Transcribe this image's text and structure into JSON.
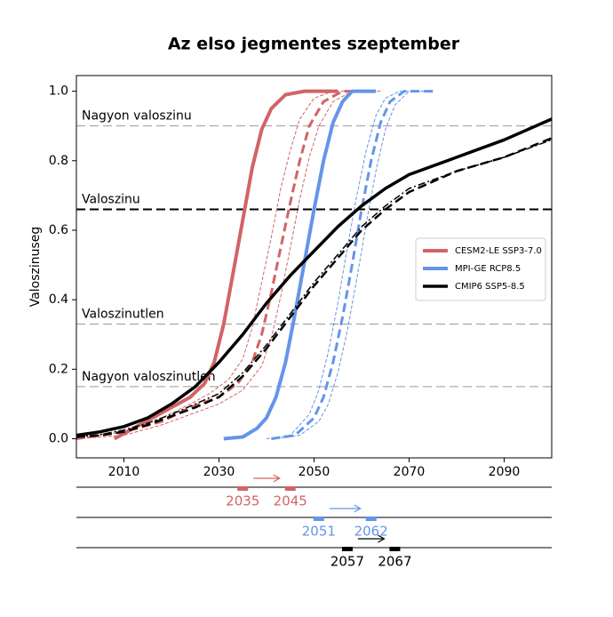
{
  "chart_data": {
    "type": "line",
    "title": "Az elso jegmentes szeptember",
    "y_label": "Valoszinuseg",
    "xlim": [
      2000,
      2100
    ],
    "ylim": [
      -0.055,
      1.045
    ],
    "xticks": [
      2010,
      2030,
      2050,
      2070,
      2090
    ],
    "yticks": [
      {
        "value": 0,
        "label": "0.0"
      },
      0.2,
      0.4,
      0.6,
      0.8,
      {
        "value": 1,
        "label": "1.0"
      }
    ],
    "legend": "center right",
    "reference_lines": [
      {
        "value": 0.9,
        "label": "Nagyon valoszinu",
        "color": "#999999",
        "width": 1,
        "dash": "dashed"
      },
      {
        "value": 0.66,
        "label": "Valoszinu",
        "color": "#000000",
        "width": 2,
        "dash": "dashed"
      },
      {
        "value": 0.33,
        "label": "Valoszinutlen",
        "color": "#999999",
        "width": 1,
        "dash": "dashed"
      },
      {
        "value": 0.15,
        "label": "Nagyon valoszinutlen",
        "color": "#999999",
        "width": 1,
        "dash": "dashed"
      }
    ],
    "series": [
      {
        "name": "CESM2-LE SSP3-7.0",
        "color": "#d26466",
        "width": 4,
        "dash": "solid",
        "x": [
          2008,
          2012,
          2016,
          2020,
          2024,
          2027,
          2029,
          2031,
          2033,
          2035,
          2037,
          2039,
          2041,
          2044,
          2048,
          2055
        ],
        "values": [
          0,
          0.03,
          0.06,
          0.09,
          0.12,
          0.16,
          0.22,
          0.33,
          0.48,
          0.63,
          0.78,
          0.89,
          0.95,
          0.99,
          1.0,
          1.0
        ]
      },
      {
        "color": "#d26466",
        "width": 3,
        "dash": "dashed",
        "x": [
          2000,
          2010,
          2018,
          2024,
          2030,
          2034,
          2037,
          2039,
          2041,
          2043,
          2045,
          2047,
          2049,
          2052,
          2056,
          2063
        ],
        "values": [
          0,
          0.02,
          0.05,
          0.09,
          0.12,
          0.16,
          0.22,
          0.3,
          0.42,
          0.55,
          0.68,
          0.8,
          0.9,
          0.97,
          1.0,
          1.0
        ]
      },
      {
        "color": "#d26466",
        "width": 1,
        "dash": "thin",
        "x": [
          2000,
          2010,
          2018,
          2024,
          2028,
          2032,
          2035,
          2037,
          2039,
          2041,
          2043,
          2045,
          2047,
          2050,
          2054,
          2060
        ],
        "values": [
          0,
          0.02,
          0.06,
          0.1,
          0.13,
          0.17,
          0.23,
          0.32,
          0.45,
          0.58,
          0.72,
          0.83,
          0.92,
          0.98,
          1.0,
          1.0
        ]
      },
      {
        "color": "#d26466",
        "width": 1,
        "dash": "thin",
        "x": [
          2000,
          2010,
          2018,
          2024,
          2030,
          2035,
          2039,
          2041,
          2043,
          2045,
          2047,
          2049,
          2051,
          2054,
          2058,
          2064
        ],
        "values": [
          0,
          0.01,
          0.04,
          0.07,
          0.1,
          0.14,
          0.21,
          0.29,
          0.41,
          0.55,
          0.69,
          0.81,
          0.9,
          0.97,
          1.0,
          1.0
        ]
      },
      {
        "name": "MPI-GE RCP8.5",
        "color": "#6495e8",
        "width": 4,
        "dash": "solid",
        "x": [
          2031,
          2035,
          2038,
          2040,
          2042,
          2044,
          2046,
          2048,
          2050,
          2052,
          2054,
          2056,
          2058,
          2063
        ],
        "values": [
          0,
          0.005,
          0.03,
          0.06,
          0.12,
          0.22,
          0.36,
          0.51,
          0.66,
          0.8,
          0.91,
          0.97,
          1.0,
          1.0
        ]
      },
      {
        "color": "#6495e8",
        "width": 3,
        "dash": "dashed",
        "x": [
          2041,
          2046,
          2050,
          2052,
          2054,
          2056,
          2058,
          2060,
          2062,
          2064,
          2066,
          2069,
          2075
        ],
        "values": [
          0,
          0.01,
          0.06,
          0.12,
          0.22,
          0.35,
          0.5,
          0.66,
          0.8,
          0.91,
          0.97,
          1.0,
          1.0
        ]
      },
      {
        "color": "#6495e8",
        "width": 1,
        "dash": "thin",
        "x": [
          2040,
          2045,
          2049,
          2051,
          2053,
          2055,
          2057,
          2059,
          2061,
          2063,
          2065,
          2068,
          2073
        ],
        "values": [
          0,
          0.01,
          0.07,
          0.14,
          0.25,
          0.39,
          0.55,
          0.7,
          0.83,
          0.93,
          0.98,
          1.0,
          1.0
        ]
      },
      {
        "color": "#6495e8",
        "width": 1,
        "dash": "thin",
        "x": [
          2042,
          2047,
          2051,
          2053,
          2055,
          2057,
          2059,
          2061,
          2063,
          2065,
          2067,
          2070,
          2075
        ],
        "values": [
          0,
          0.01,
          0.05,
          0.1,
          0.19,
          0.31,
          0.46,
          0.62,
          0.77,
          0.89,
          0.96,
          1.0,
          1.0
        ]
      },
      {
        "name": "CMIP6 SSP5-8.5",
        "color": "#000000",
        "width": 3.5,
        "dash": "solid",
        "x": [
          2000,
          2005,
          2010,
          2015,
          2020,
          2025,
          2030,
          2035,
          2040,
          2045,
          2050,
          2055,
          2060,
          2065,
          2070,
          2080,
          2090,
          2100
        ],
        "values": [
          0.01,
          0.02,
          0.035,
          0.06,
          0.1,
          0.15,
          0.22,
          0.3,
          0.39,
          0.47,
          0.54,
          0.61,
          0.67,
          0.72,
          0.76,
          0.81,
          0.86,
          0.92
        ]
      },
      {
        "color": "#000000",
        "width": 2.5,
        "dash": "dashed",
        "x": [
          2000,
          2005,
          2010,
          2015,
          2020,
          2025,
          2030,
          2035,
          2040,
          2045,
          2050,
          2055,
          2060,
          2065,
          2070,
          2080,
          2090,
          2100
        ],
        "values": [
          0.005,
          0.01,
          0.02,
          0.04,
          0.065,
          0.09,
          0.12,
          0.18,
          0.26,
          0.35,
          0.44,
          0.52,
          0.6,
          0.66,
          0.71,
          0.77,
          0.81,
          0.865
        ]
      },
      {
        "color": "#000000",
        "width": 1.5,
        "dash": "dashdot",
        "x": [
          2000,
          2005,
          2010,
          2015,
          2020,
          2025,
          2030,
          2035,
          2040,
          2045,
          2050,
          2055,
          2060,
          2065,
          2070,
          2080,
          2090,
          2100
        ],
        "values": [
          0.005,
          0.012,
          0.025,
          0.045,
          0.07,
          0.1,
          0.13,
          0.19,
          0.27,
          0.36,
          0.45,
          0.53,
          0.61,
          0.67,
          0.72,
          0.77,
          0.81,
          0.86
        ]
      }
    ],
    "ranges": [
      {
        "color": "#d26466",
        "start": 2035,
        "end": 2045
      },
      {
        "color": "#6495e8",
        "start": 2051,
        "end": 2062
      },
      {
        "color": "#000000",
        "start": 2057,
        "end": 2067
      }
    ]
  }
}
